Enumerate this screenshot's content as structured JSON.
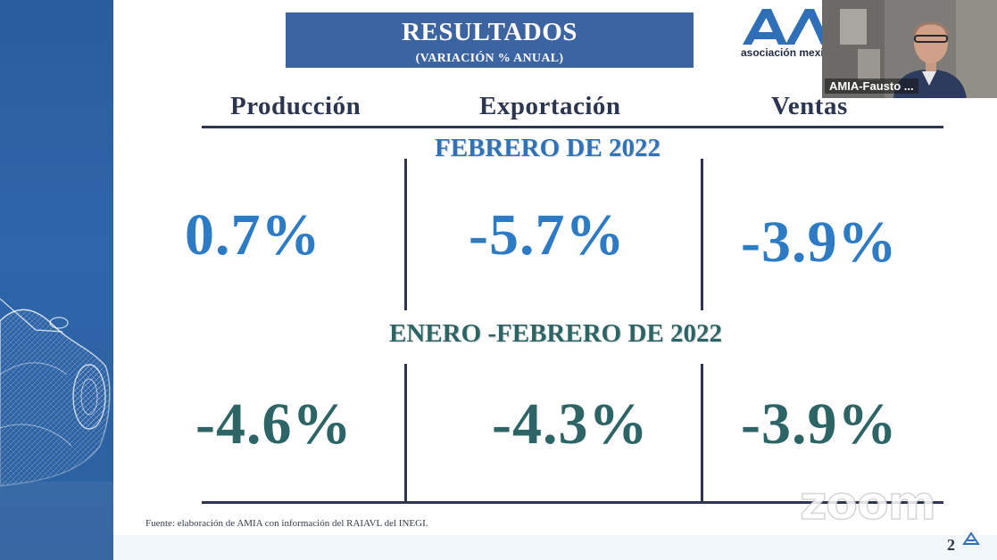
{
  "slide": {
    "title": "RESULTADOS",
    "subtitle": "(VARIACIÓN % ANUAL)",
    "logo_text": "asociación mexicana",
    "columns": [
      "Producción",
      "Exportación",
      "Ventas"
    ],
    "sections": [
      {
        "title": "FEBRERO DE 2022",
        "values": [
          "0.7%",
          "-5.7%",
          "-3.9%"
        ]
      },
      {
        "title": "ENERO -FEBRERO DE 2022",
        "values": [
          "-4.6%",
          "-4.3%",
          "-3.9%"
        ]
      }
    ],
    "footnote": "Fuente: elaboración de AMIA con información del RAIAVL del INEGI.",
    "page_number": "2"
  },
  "video": {
    "participant_name": "AMIA-Fausto ..."
  },
  "watermark": "zoom",
  "colors": {
    "title_box": "#3c64a0",
    "value_blue": "#2c7bc4",
    "value_teal": "#2d6466",
    "header_text": "#2d3650",
    "left_panel": "#2f66aa"
  }
}
